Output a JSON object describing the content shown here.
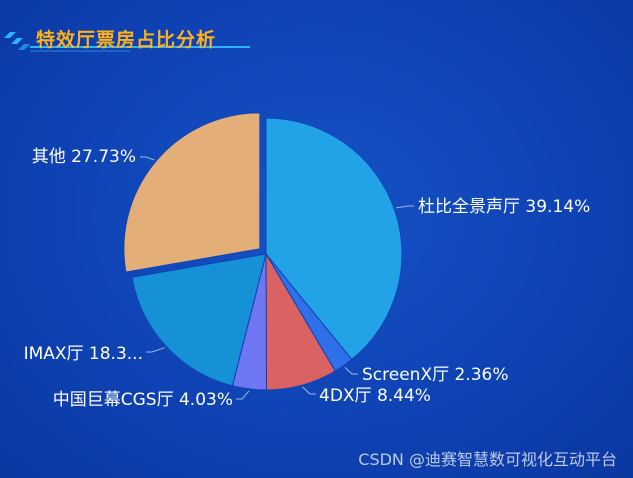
{
  "header": {
    "title": "特效厅票房占比分析"
  },
  "watermark": "CSDN @迪赛智慧数可视化互动平台",
  "colors": {
    "title": "#ffb11a",
    "leader_line": "#9fb7e8",
    "label_text": "#ffffff"
  },
  "chart_data": {
    "type": "pie",
    "title": "特效厅票房占比分析",
    "slices": [
      {
        "name": "杜比全景声厅",
        "value": 39.14,
        "label": "杜比全景声厅 39.14%",
        "color": "#22a3e8",
        "exploded": false
      },
      {
        "name": "ScreenX厅",
        "value": 2.36,
        "label": "ScreenX厅 2.36%",
        "color": "#2f6fe8",
        "exploded": false
      },
      {
        "name": "4DX厅",
        "value": 8.44,
        "label": "4DX厅 8.44%",
        "color": "#da6262",
        "exploded": false
      },
      {
        "name": "中国巨幕CGS厅",
        "value": 4.03,
        "label": "中国巨幕CGS厅 4.03%",
        "color": "#6f76f2",
        "exploded": false
      },
      {
        "name": "IMAX厅",
        "value": 18.3,
        "label": "IMAX厅 18.3...",
        "color": "#1690d6",
        "exploded": false
      },
      {
        "name": "其他",
        "value": 27.73,
        "label": "其他 27.73%",
        "color": "#e3ae78",
        "exploded": true
      }
    ]
  }
}
